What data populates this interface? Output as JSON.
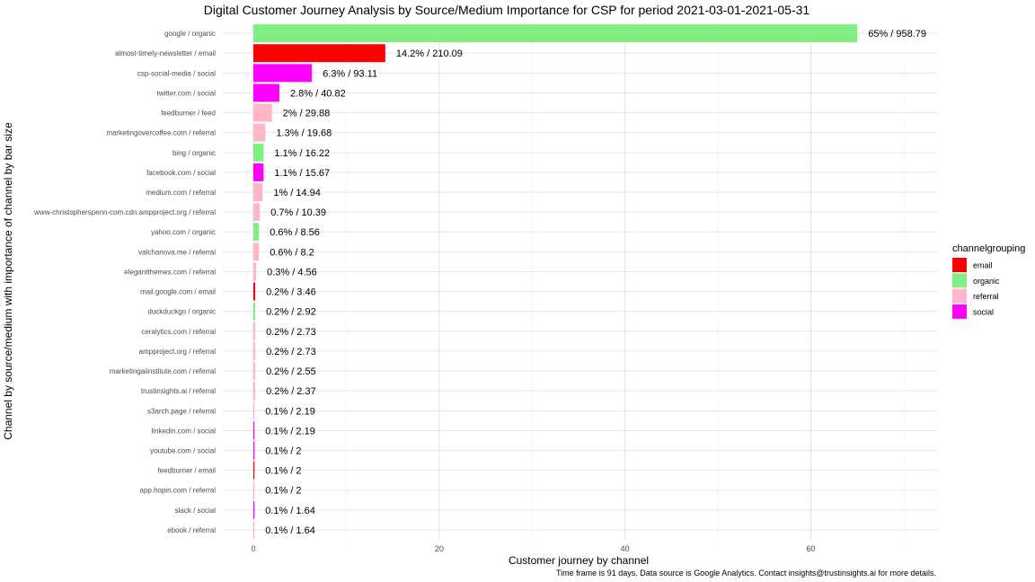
{
  "chart_data": {
    "type": "bar",
    "orientation": "horizontal",
    "title": "Digital Customer Journey Analysis by Source/Medium Importance for CSP for period 2021-03-01-2021-05-31",
    "xlabel": "Customer journey by channel",
    "ylabel": "Channel by source/medium with importance of channel by bar size",
    "caption": "Time frame is 91 days. Data source is Google Analytics. Contact insights@trustinsights.ai for more details.",
    "xlim": [
      0,
      73
    ],
    "xticks": [
      0,
      20,
      40,
      60
    ],
    "grid": true,
    "legend": {
      "title": "channelgrouping",
      "position": "right",
      "items": [
        {
          "name": "email",
          "color": "#ff0000"
        },
        {
          "name": "organic",
          "color": "#80ee80"
        },
        {
          "name": "referral",
          "color": "#ffb6c8"
        },
        {
          "name": "social",
          "color": "#ff00ff"
        }
      ]
    },
    "bars": [
      {
        "category": "google / organic",
        "group": "organic",
        "value": 65,
        "label": "65% / 958.79"
      },
      {
        "category": "almost-timely-newsletter / email",
        "group": "email",
        "value": 14.2,
        "label": "14.2% / 210.09"
      },
      {
        "category": "csp-social-media / social",
        "group": "social",
        "value": 6.3,
        "label": "6.3% / 93.11"
      },
      {
        "category": "twitter.com / social",
        "group": "social",
        "value": 2.8,
        "label": "2.8% / 40.82"
      },
      {
        "category": "feedburner / feed",
        "group": "referral",
        "value": 2,
        "label": "2% / 29.88"
      },
      {
        "category": "marketingovercoffee.com / referral",
        "group": "referral",
        "value": 1.3,
        "label": "1.3% / 19.68"
      },
      {
        "category": "bing / organic",
        "group": "organic",
        "value": 1.1,
        "label": "1.1% / 16.22"
      },
      {
        "category": "facebook.com / social",
        "group": "social",
        "value": 1.1,
        "label": "1.1% / 15.67"
      },
      {
        "category": "medium.com / referral",
        "group": "referral",
        "value": 1,
        "label": "1% / 14.94"
      },
      {
        "category": "www-christopherspenn-com.cdn.ampproject.org / referral",
        "group": "referral",
        "value": 0.7,
        "label": "0.7% / 10.39"
      },
      {
        "category": "yahoo.com / organic",
        "group": "organic",
        "value": 0.6,
        "label": "0.6% / 8.56"
      },
      {
        "category": "valchanova.me / referral",
        "group": "referral",
        "value": 0.6,
        "label": "0.6% / 8.2"
      },
      {
        "category": "elegantthemes.com / referral",
        "group": "referral",
        "value": 0.3,
        "label": "0.3% / 4.56"
      },
      {
        "category": "mail.google.com / email",
        "group": "email",
        "value": 0.2,
        "label": "0.2% / 3.46"
      },
      {
        "category": "duckduckgo / organic",
        "group": "organic",
        "value": 0.2,
        "label": "0.2% / 2.92"
      },
      {
        "category": "ceralytics.com / referral",
        "group": "referral",
        "value": 0.2,
        "label": "0.2% / 2.73"
      },
      {
        "category": "ampproject.org / referral",
        "group": "referral",
        "value": 0.2,
        "label": "0.2% / 2.73"
      },
      {
        "category": "marketingaiinstitute.com / referral",
        "group": "referral",
        "value": 0.2,
        "label": "0.2% / 2.55"
      },
      {
        "category": "trustinsights.ai / referral",
        "group": "referral",
        "value": 0.2,
        "label": "0.2% / 2.37"
      },
      {
        "category": "s3arch.page / referral",
        "group": "referral",
        "value": 0.1,
        "label": "0.1% / 2.19"
      },
      {
        "category": "linkedin.com / social",
        "group": "social",
        "value": 0.1,
        "label": "0.1% / 2.19"
      },
      {
        "category": "youtube.com / social",
        "group": "social",
        "value": 0.1,
        "label": "0.1% / 2"
      },
      {
        "category": "feedburner / email",
        "group": "email",
        "value": 0.1,
        "label": "0.1% / 2"
      },
      {
        "category": "app.hopin.com / referral",
        "group": "referral",
        "value": 0.1,
        "label": "0.1% / 2"
      },
      {
        "category": "slack / social",
        "group": "social",
        "value": 0.1,
        "label": "0.1% / 1.64"
      },
      {
        "category": "ebook / referral",
        "group": "referral",
        "value": 0.1,
        "label": "0.1% / 1.64"
      }
    ]
  }
}
